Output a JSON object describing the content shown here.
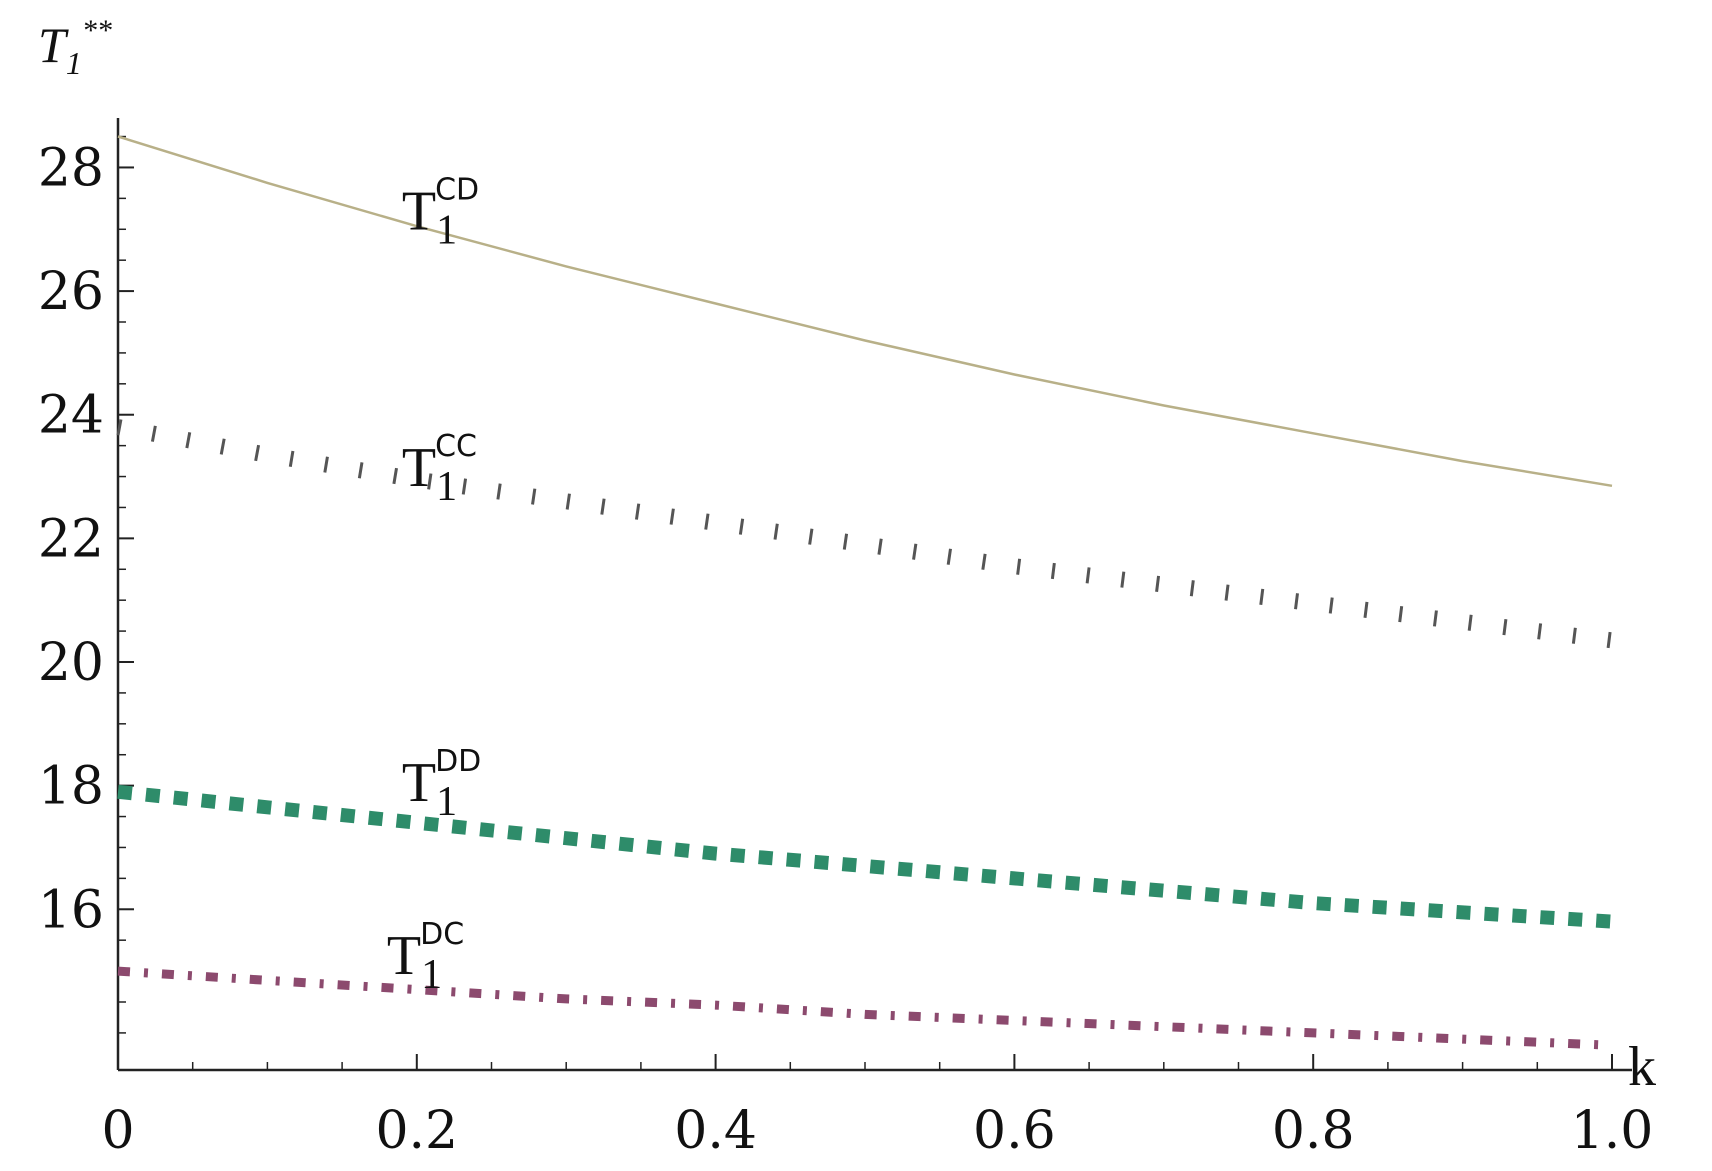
{
  "chart_data": {
    "type": "line",
    "xlabel": "k",
    "ylabel": "T",
    "ylabel_sub": "1",
    "ylabel_sup": "**",
    "xlim": [
      0,
      1.0
    ],
    "ylim": [
      13.4,
      28.8
    ],
    "x_ticks": [
      0,
      0.2,
      0.4,
      0.6,
      0.8,
      1.0
    ],
    "x_tick_labels": [
      "0",
      "0.2",
      "0.4",
      "0.6",
      "0.8",
      "1.0"
    ],
    "y_ticks": [
      16,
      18,
      20,
      22,
      24,
      26,
      28
    ],
    "y_tick_labels": [
      "16",
      "18",
      "20",
      "22",
      "24",
      "26",
      "28"
    ],
    "x": [
      0,
      0.1,
      0.2,
      0.3,
      0.4,
      0.5,
      0.6,
      0.7,
      0.8,
      0.9,
      1.0
    ],
    "series": [
      {
        "name": "T",
        "sub": "1",
        "sup": "CD",
        "style": "solid",
        "color": "#b8b088",
        "values": [
          28.5,
          27.75,
          27.05,
          26.4,
          25.8,
          25.2,
          24.65,
          24.15,
          23.7,
          23.25,
          22.85
        ]
      },
      {
        "name": "T",
        "sub": "1",
        "sup": "CC",
        "style": "dotted",
        "color": "#555555",
        "values": [
          23.8,
          23.35,
          22.95,
          22.6,
          22.25,
          21.9,
          21.55,
          21.25,
          20.95,
          20.65,
          20.35
        ]
      },
      {
        "name": "T",
        "sub": "1",
        "sup": "DD",
        "style": "dotted-thick",
        "color": "#2e8c6a",
        "values": [
          17.9,
          17.65,
          17.4,
          17.15,
          16.9,
          16.7,
          16.5,
          16.3,
          16.1,
          15.95,
          15.8
        ]
      },
      {
        "name": "T",
        "sub": "1",
        "sup": "DC",
        "style": "dash-dot",
        "color": "#8c4a6e",
        "values": [
          15.0,
          14.85,
          14.7,
          14.55,
          14.45,
          14.3,
          14.2,
          14.1,
          14.0,
          13.9,
          13.8
        ]
      }
    ]
  }
}
